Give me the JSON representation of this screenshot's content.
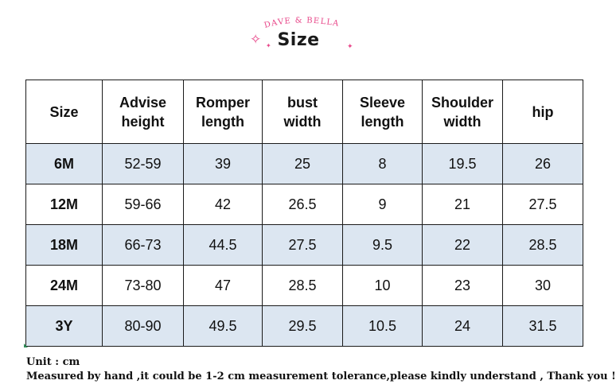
{
  "brand": {
    "name": "DAVE & BELLA",
    "color": "#e8488a"
  },
  "title": "Size",
  "table": {
    "headers": [
      [
        "Size"
      ],
      [
        "Advise",
        "height"
      ],
      [
        "Romper",
        "length"
      ],
      [
        "bust",
        "width"
      ],
      [
        "Sleeve",
        "length"
      ],
      [
        "Shoulder",
        "width"
      ],
      [
        "hip"
      ]
    ],
    "rows": [
      [
        "6M",
        "52-59",
        "39",
        "25",
        "8",
        "19.5",
        "26"
      ],
      [
        "12M",
        "59-66",
        "42",
        "26.5",
        "9",
        "21",
        "27.5"
      ],
      [
        "18M",
        "66-73",
        "44.5",
        "27.5",
        "9.5",
        "22",
        "28.5"
      ],
      [
        "24M",
        "73-80",
        "47",
        "28.5",
        "10",
        "23",
        "30"
      ],
      [
        "3Y",
        "80-90",
        "49.5",
        "29.5",
        "10.5",
        "24",
        "31.5"
      ]
    ],
    "shade_color": "#dce6f1"
  },
  "notes": {
    "unit": "Unit : cm",
    "tolerance": "Measured by hand ,it could be 1-2 cm measurement tolerance,please kindly understand , Thank you !"
  }
}
